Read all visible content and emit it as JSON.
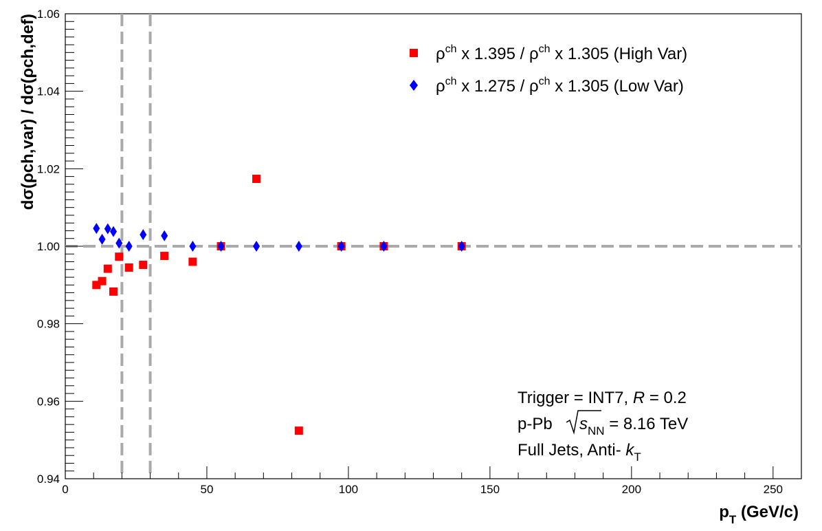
{
  "chart_data": {
    "type": "scatter",
    "title": "",
    "xlabel": {
      "main": "p",
      "sub": "T",
      "rest": " (GeV/c)"
    },
    "ylabel": {
      "text": "dσ(ρch,var) / dσ(ρch,def)"
    },
    "xlim": [
      0,
      260
    ],
    "ylim": [
      0.94,
      1.06
    ],
    "x_ticks": [
      0,
      50,
      100,
      150,
      200,
      250
    ],
    "x_tick_labels": [
      "0",
      "50",
      "100",
      "150",
      "200",
      "250"
    ],
    "y_ticks": [
      0.94,
      0.96,
      0.98,
      1.0,
      1.02,
      1.04,
      1.06
    ],
    "y_tick_labels": [
      "0.94",
      "0.96",
      "0.98",
      "1.00",
      "1.02",
      "1.04",
      "1.06"
    ],
    "grid": false,
    "legend_position": "top-right",
    "reference_lines": {
      "horizontal_y": 1.0,
      "vertical_x": [
        20,
        30
      ],
      "color": "#aaaaaa"
    },
    "series": [
      {
        "name": "ρch x 1.395 /  ρch x 1.305 (High Var)",
        "legend": {
          "rho": "ρ",
          "sup": "ch",
          "part1": " x 1.395 /  ",
          "part2": " x 1.305 (High Var)"
        },
        "marker": "square",
        "color": "#ff0000",
        "x": [
          11,
          13,
          15,
          17,
          19,
          22.5,
          27.5,
          35,
          45,
          55,
          67.5,
          82.5,
          97.5,
          112.5,
          140
        ],
        "y": [
          0.99,
          0.991,
          0.9942,
          0.9883,
          0.9973,
          0.9945,
          0.9952,
          0.9975,
          0.996,
          1.0,
          1.0174,
          0.9524,
          1.0,
          1.0,
          1.0
        ]
      },
      {
        "name": "ρch x 1.275 /  ρch x 1.305 (Low Var)",
        "legend": {
          "rho": "ρ",
          "sup": "ch",
          "part1": " x 1.275 /  ",
          "part2": " x 1.305 (Low Var)"
        },
        "marker": "diamond",
        "color": "#0000ff",
        "x": [
          11,
          13,
          15,
          17,
          19,
          22.5,
          27.5,
          35,
          45,
          55,
          67.5,
          82.5,
          97.5,
          112.5,
          140
        ],
        "y": [
          1.0046,
          1.0018,
          1.0045,
          1.0038,
          1.0008,
          1.0,
          1.003,
          1.0027,
          1.0,
          1.0,
          1.0,
          1.0,
          1.0,
          1.0,
          1.0
        ]
      }
    ],
    "annotations": {
      "line1_a": "Trigger = INT7,  ",
      "line1_r": "R",
      "line1_b": " = 0.2",
      "line2_a": "p-Pb  ",
      "line2_s": "s",
      "line2_sub": "NN",
      "line2_b": " = 8.16 TeV",
      "line3_a": "Full Jets, Anti- ",
      "line3_k": "k",
      "line3_sub": "T"
    }
  }
}
